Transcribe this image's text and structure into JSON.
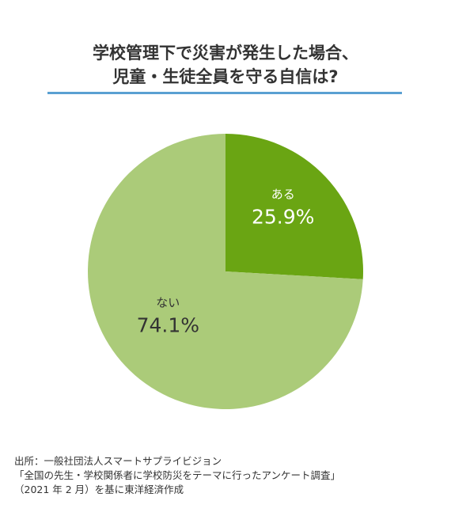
{
  "title": {
    "line1": "学校管理下で災害が発生した場合、",
    "line2": "児童・生徒全員を守る自信は?"
  },
  "chart_data": {
    "type": "pie",
    "title": "学校管理下で災害が発生した場合、児童・生徒全員を守る自信は?",
    "slices": [
      {
        "label": "ある",
        "value": 25.9,
        "display": "25.9%",
        "color": "#6aa513",
        "text_color": "#ffffff"
      },
      {
        "label": "ない",
        "value": 74.1,
        "display": "74.1%",
        "color": "#abcb79",
        "text_color": "#333333"
      }
    ]
  },
  "source": {
    "line1": "出所：一般社団法人スマートサプライビジョン",
    "line2": "「全国の先生・学校関係者に学校防災をテーマに行ったアンケート調査」",
    "line3": "（2021 年 2 月）を基に東洋経済作成"
  }
}
